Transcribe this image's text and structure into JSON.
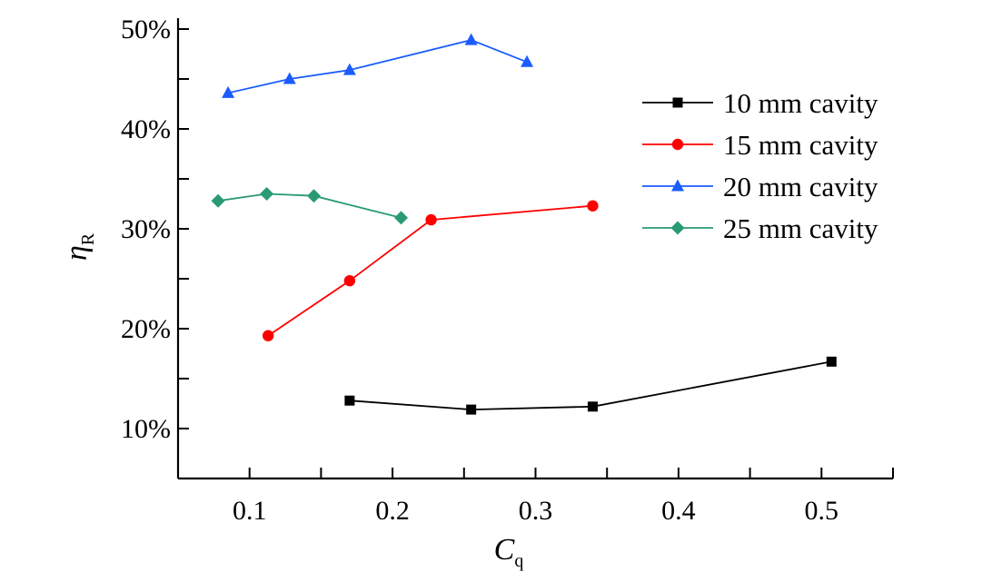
{
  "chart_data": {
    "type": "line",
    "xlabel": {
      "main": "C",
      "sub": "q"
    },
    "ylabel": {
      "main": "η",
      "sub": "R"
    },
    "xlim": [
      0.05,
      0.55
    ],
    "ylim": [
      0.05,
      0.5
    ],
    "x_ticks": [
      0.1,
      0.2,
      0.3,
      0.4,
      0.5
    ],
    "x_tick_labels": [
      "0.1",
      "0.2",
      "0.3",
      "0.4",
      "0.5"
    ],
    "y_ticks": [
      0.1,
      0.2,
      0.3,
      0.4,
      0.5
    ],
    "y_tick_labels": [
      "10%",
      "20%",
      "30%",
      "40%",
      "50%"
    ],
    "grid": false,
    "legend_position": "top-right",
    "series": [
      {
        "name": "10 mm cavity",
        "color": "#000000",
        "marker": "square",
        "x": [
          0.17,
          0.255,
          0.34,
          0.507
        ],
        "y": [
          0.128,
          0.119,
          0.122,
          0.167
        ]
      },
      {
        "name": "15 mm cavity",
        "color": "#ff0000",
        "marker": "circle",
        "x": [
          0.113,
          0.17,
          0.227,
          0.34
        ],
        "y": [
          0.193,
          0.248,
          0.309,
          0.323
        ]
      },
      {
        "name": "20 mm cavity",
        "color": "#1a5cff",
        "marker": "triangle",
        "x": [
          0.085,
          0.128,
          0.17,
          0.255,
          0.294
        ],
        "y": [
          0.436,
          0.45,
          0.459,
          0.489,
          0.467
        ]
      },
      {
        "name": "25 mm cavity",
        "color": "#2a9a74",
        "marker": "diamond",
        "x": [
          0.078,
          0.112,
          0.145,
          0.206
        ],
        "y": [
          0.328,
          0.335,
          0.333,
          0.311
        ]
      }
    ]
  }
}
